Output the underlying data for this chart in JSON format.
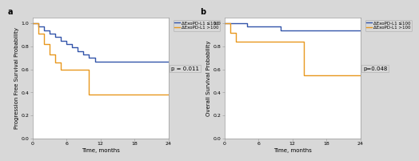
{
  "panel_a": {
    "title": "a",
    "xlabel": "Time, months",
    "ylabel": "Progression Free Survival Probability",
    "p_value": "p = 0.011",
    "xlim": [
      0,
      24
    ],
    "ylim": [
      0.0,
      1.05
    ],
    "yticks": [
      0.0,
      0.2,
      0.4,
      0.6,
      0.8,
      1.0
    ],
    "xticks": [
      0,
      6,
      12,
      18,
      24
    ],
    "blue_steps_x": [
      0,
      1,
      2,
      3,
      4,
      5,
      6,
      7,
      8,
      9,
      10,
      11,
      12,
      24
    ],
    "blue_steps_y": [
      1.0,
      0.97,
      0.94,
      0.91,
      0.88,
      0.85,
      0.82,
      0.79,
      0.76,
      0.73,
      0.7,
      0.67,
      0.67,
      0.67
    ],
    "orange_steps_x": [
      0,
      1,
      2,
      3,
      4,
      5,
      6,
      9,
      10,
      24
    ],
    "orange_steps_y": [
      1.0,
      0.91,
      0.82,
      0.73,
      0.66,
      0.6,
      0.6,
      0.6,
      0.38,
      0.38
    ],
    "legend_label_blue": "ΔExoPD-L1 ≤100",
    "legend_label_orange": "ΔExoPD-L1 >100",
    "blue_color": "#3355aa",
    "orange_color": "#e8981e"
  },
  "panel_b": {
    "title": "b",
    "xlabel": "Time, months",
    "ylabel": "Overall Survival Probability",
    "p_value": "p=0.048",
    "xlim": [
      0,
      24
    ],
    "ylim": [
      0.0,
      1.05
    ],
    "yticks": [
      0.0,
      0.2,
      0.4,
      0.6,
      0.8,
      1.0
    ],
    "xticks": [
      0,
      6,
      12,
      18,
      24
    ],
    "blue_steps_x": [
      0,
      3,
      4,
      9,
      10,
      13,
      24
    ],
    "blue_steps_y": [
      1.0,
      1.0,
      0.97,
      0.97,
      0.94,
      0.94,
      0.94
    ],
    "orange_steps_x": [
      0,
      1,
      2,
      13,
      14,
      24
    ],
    "orange_steps_y": [
      1.0,
      0.92,
      0.84,
      0.84,
      0.55,
      0.55
    ],
    "legend_label_blue": "ΔExoPD-L1 ≤100",
    "legend_label_orange": "ΔExoPD-L1 >100",
    "blue_color": "#3355aa",
    "orange_color": "#e8981e"
  },
  "figure_bg": "#d8d8d8",
  "plot_bg": "#ffffff",
  "legend_bg": "#d8d8d8",
  "fontsize_axlabel": 5.0,
  "fontsize_tick": 4.5,
  "fontsize_legend": 4.0,
  "fontsize_title": 7.0,
  "fontsize_pval": 5.0,
  "line_width": 1.0
}
